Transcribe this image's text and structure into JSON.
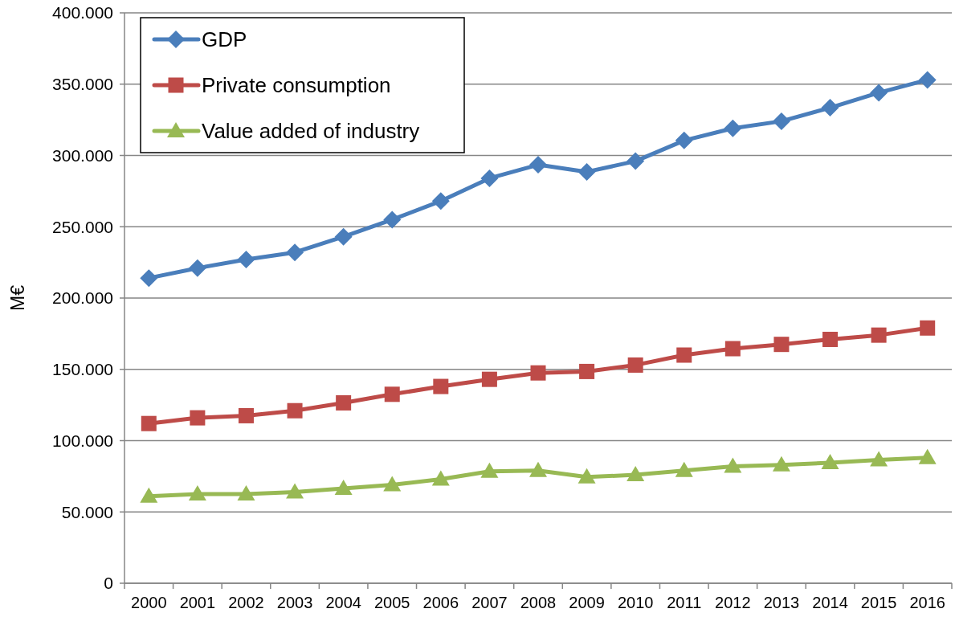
{
  "chart_data": {
    "type": "line",
    "ylabel": "M€",
    "categories": [
      "2000",
      "2001",
      "2002",
      "2003",
      "2004",
      "2005",
      "2006",
      "2007",
      "2008",
      "2009",
      "2010",
      "2011",
      "2012",
      "2013",
      "2014",
      "2015",
      "2016"
    ],
    "series": [
      {
        "name": "GDP",
        "color": "#4a7ebb",
        "marker": "diamond",
        "values": [
          214000,
          221000,
          227000,
          232000,
          243000,
          255000,
          268000,
          284000,
          293500,
          288500,
          296000,
          310500,
          319000,
          324000,
          333500,
          344000,
          353000
        ]
      },
      {
        "name": "Private consumption",
        "color": "#be4b48",
        "marker": "square",
        "values": [
          112000,
          116000,
          117500,
          121000,
          126500,
          132500,
          138000,
          143000,
          147500,
          148500,
          153000,
          160000,
          164500,
          167500,
          171000,
          174000,
          179000
        ]
      },
      {
        "name": "Value added of industry",
        "color": "#98b954",
        "marker": "triangle",
        "values": [
          61000,
          62500,
          62500,
          64000,
          66500,
          69000,
          73000,
          78500,
          79000,
          74500,
          76000,
          79000,
          82000,
          83000,
          84500,
          86500,
          88000
        ]
      }
    ],
    "ylim": [
      0,
      400000
    ],
    "yticks": [
      0,
      {
        "value": 50000,
        "label": "50.000"
      },
      {
        "value": 100000,
        "label": "100.000"
      },
      {
        "value": 150000,
        "label": "150.000"
      },
      {
        "value": 200000,
        "label": "200.000"
      },
      {
        "value": 250000,
        "label": "250.000"
      },
      {
        "value": 300000,
        "label": "300.000"
      },
      {
        "value": 350000,
        "label": "350.000"
      },
      {
        "value": 400000,
        "label": "400.000"
      }
    ],
    "grid": "y",
    "legend": "top left"
  }
}
